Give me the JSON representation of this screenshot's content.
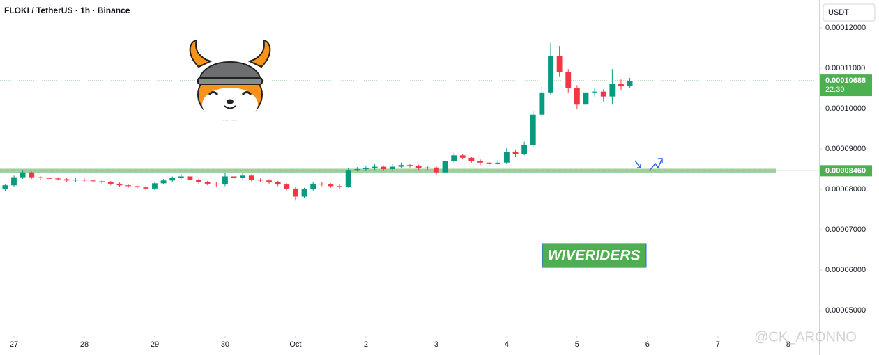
{
  "chart_data": {
    "type": "candlestick",
    "title": "FLOKI / TetherUS · 1h · Binance",
    "currency": "USDT",
    "up_color": "#089981",
    "down_color": "#f23645",
    "x": [
      -3,
      0,
      3,
      6,
      9,
      12,
      15,
      18,
      21,
      24,
      27,
      30,
      33,
      36,
      39,
      42,
      45,
      48,
      51,
      54,
      57,
      60,
      63,
      66,
      69,
      72,
      75,
      78,
      81,
      84,
      87,
      90,
      93,
      96,
      99,
      102,
      105,
      108,
      111,
      114,
      117,
      120,
      123,
      126,
      129,
      132,
      135,
      138,
      141,
      144,
      147,
      150,
      153,
      156,
      159,
      162,
      165,
      168,
      171,
      174,
      177,
      180,
      183,
      186,
      189,
      192,
      195,
      198,
      201,
      204,
      207,
      210
    ],
    "open": [
      8e-05,
      8.1e-05,
      8.3e-05,
      8.42e-05,
      8.3e-05,
      8.28e-05,
      8.27e-05,
      8.25e-05,
      8.22e-05,
      8.24e-05,
      8.22e-05,
      8.2e-05,
      8.18e-05,
      8.14e-05,
      8.1e-05,
      8.08e-05,
      8.05e-05,
      8.02e-05,
      8.15e-05,
      8.22e-05,
      8.28e-05,
      8.32e-05,
      8.24e-05,
      8.18e-05,
      8.14e-05,
      8.12e-05,
      8.32e-05,
      8.28e-05,
      8.34e-05,
      8.24e-05,
      8.22e-05,
      8.18e-05,
      8.12e-05,
      8.02e-05,
      7.82e-05,
      8e-05,
      8.14e-05,
      8.12e-05,
      8.08e-05,
      8.06e-05,
      8.48e-05,
      8.5e-05,
      8.52e-05,
      8.56e-05,
      8.5e-05,
      8.56e-05,
      8.6e-05,
      8.58e-05,
      8.52e-05,
      8.54e-05,
      8.42e-05,
      8.7e-05,
      8.84e-05,
      8.78e-05,
      8.7e-05,
      8.66e-05,
      8.64e-05,
      8.66e-05,
      8.92e-05,
      8.88e-05,
      9.1e-05,
      9.85e-05,
      0.000104,
      0.000113,
      0.000109,
      0.000105,
      0.000101,
      0.000104,
      0.0001042,
      0.000103,
      0.0001062,
      0.0001055
    ],
    "high": [
      8.14e-05,
      8.34e-05,
      8.48e-05,
      8.44e-05,
      8.33e-05,
      8.31e-05,
      8.3e-05,
      8.28e-05,
      8.28e-05,
      8.27e-05,
      8.25e-05,
      8.23e-05,
      8.21e-05,
      8.17e-05,
      8.13e-05,
      8.11e-05,
      8.08e-05,
      8.19e-05,
      8.26e-05,
      8.32e-05,
      8.38e-05,
      8.35e-05,
      8.27e-05,
      8.21e-05,
      8.18e-05,
      8.4e-05,
      8.36e-05,
      8.4e-05,
      8.37e-05,
      8.27e-05,
      8.25e-05,
      8.21e-05,
      8.15e-05,
      8.05e-05,
      8.04e-05,
      8.19e-05,
      8.18e-05,
      8.15e-05,
      8.12e-05,
      8.52e-05,
      8.55e-05,
      8.58e-05,
      8.62e-05,
      8.59e-05,
      8.62e-05,
      8.66e-05,
      8.64e-05,
      8.61e-05,
      8.58e-05,
      8.57e-05,
      8.76e-05,
      8.9e-05,
      8.88e-05,
      8.81e-05,
      8.74e-05,
      8.7e-05,
      8.72e-05,
      9.02e-05,
      8.98e-05,
      9.18e-05,
      9.95e-05,
      0.0001055,
      0.0001162,
      0.0001155,
      0.0001098,
      0.0001058,
      0.0001052,
      0.000105,
      0.0001048,
      0.0001098,
      0.0001072,
      0.0001076
    ],
    "low": [
      7.96e-05,
      8.06e-05,
      8.26e-05,
      8.26e-05,
      8.24e-05,
      8.23e-05,
      8.22e-05,
      8.18e-05,
      8.19e-05,
      8.18e-05,
      8.16e-05,
      8.14e-05,
      8.1e-05,
      8.06e-05,
      8.04e-05,
      8e-05,
      7.96e-05,
      7.98e-05,
      8.12e-05,
      8.18e-05,
      8.25e-05,
      8.2e-05,
      8.14e-05,
      8.1e-05,
      8.06e-05,
      8.08e-05,
      8.24e-05,
      8.24e-05,
      8.2e-05,
      8.18e-05,
      8.14e-05,
      8.08e-05,
      7.98e-05,
      7.72e-05,
      7.78e-05,
      7.97e-05,
      8.08e-05,
      8.04e-05,
      8.02e-05,
      8.04e-05,
      8.44e-05,
      8.46e-05,
      8.48e-05,
      8.46e-05,
      8.47e-05,
      8.53e-05,
      8.54e-05,
      8.48e-05,
      8.48e-05,
      8.34e-05,
      8.4e-05,
      8.66e-05,
      8.74e-05,
      8.66e-05,
      8.6e-05,
      8.58e-05,
      8.6e-05,
      8.62e-05,
      8.8e-05,
      8.84e-05,
      9.05e-05,
      9.78e-05,
      0.0001035,
      0.000108,
      0.000104,
      9.98e-05,
      0.0001005,
      0.000103,
      0.0001018,
      0.000101,
      0.0001045,
      0.000105
    ],
    "close": [
      8.1e-05,
      8.3e-05,
      8.42e-05,
      8.3e-05,
      8.28e-05,
      8.27e-05,
      8.25e-05,
      8.22e-05,
      8.24e-05,
      8.22e-05,
      8.2e-05,
      8.18e-05,
      8.14e-05,
      8.1e-05,
      8.08e-05,
      8.05e-05,
      8.02e-05,
      8.15e-05,
      8.22e-05,
      8.28e-05,
      8.32e-05,
      8.24e-05,
      8.18e-05,
      8.14e-05,
      8.12e-05,
      8.32e-05,
      8.28e-05,
      8.34e-05,
      8.24e-05,
      8.22e-05,
      8.18e-05,
      8.12e-05,
      8.02e-05,
      7.82e-05,
      8e-05,
      8.14e-05,
      8.12e-05,
      8.08e-05,
      8.06e-05,
      8.48e-05,
      8.5e-05,
      8.52e-05,
      8.56e-05,
      8.5e-05,
      8.56e-05,
      8.6e-05,
      8.58e-05,
      8.52e-05,
      8.54e-05,
      8.42e-05,
      8.7e-05,
      8.84e-05,
      8.78e-05,
      8.7e-05,
      8.66e-05,
      8.64e-05,
      8.66e-05,
      8.92e-05,
      8.88e-05,
      9.1e-05,
      9.85e-05,
      0.000104,
      0.000113,
      0.000109,
      0.000105,
      0.000101,
      0.000104,
      0.0001042,
      0.000103,
      0.0001062,
      0.0001055,
      0.00010688
    ],
    "xlim": [
      -4.75,
      274.5
    ],
    "xticks": [
      {
        "value": 0,
        "label": "27"
      },
      {
        "value": 24,
        "label": "28"
      },
      {
        "value": 48,
        "label": "29"
      },
      {
        "value": 72,
        "label": "30"
      },
      {
        "value": 96,
        "label": "Oct"
      },
      {
        "value": 120,
        "label": "2"
      },
      {
        "value": 144,
        "label": "3"
      },
      {
        "value": 168,
        "label": "4"
      },
      {
        "value": 192,
        "label": "5"
      },
      {
        "value": 216,
        "label": "6"
      },
      {
        "value": 240,
        "label": "7"
      },
      {
        "value": 264,
        "label": "8"
      }
    ],
    "ylim": [
      4.38e-05,
      0.0001269
    ],
    "yticks": [
      {
        "value": 5e-05,
        "label": "0.00005000"
      },
      {
        "value": 6e-05,
        "label": "0.00006000"
      },
      {
        "value": 7e-05,
        "label": "0.00007000"
      },
      {
        "value": 8e-05,
        "label": "0.00008000"
      },
      {
        "value": 9e-05,
        "label": "0.00009000"
      },
      {
        "value": 0.0001,
        "label": "0.00010000"
      },
      {
        "value": 0.00011,
        "label": "0.00011000"
      },
      {
        "value": 0.00012,
        "label": "0.00012000"
      }
    ],
    "grid": false,
    "current_price": {
      "value": 0.00010688,
      "label": "0.00010688",
      "countdown": "22:30",
      "color": "#4caf50"
    },
    "support": {
      "value": 8.46e-05,
      "label": "0.00008460",
      "zone": [
        8.41e-05,
        8.51e-05
      ],
      "color": "#4caf50"
    },
    "watermark": "WIVERIDERS",
    "handle": "@CK_ARONNO"
  }
}
